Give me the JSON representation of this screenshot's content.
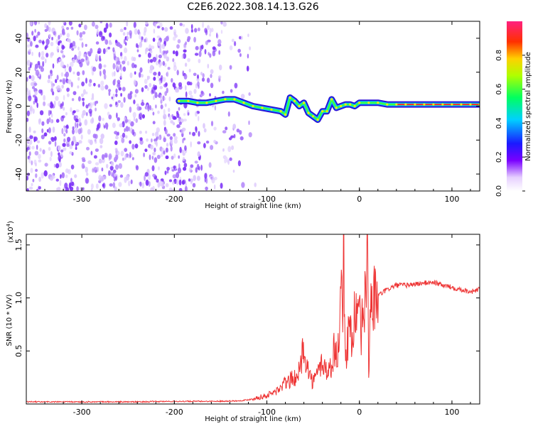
{
  "title": "C2E6.2022.308.14.13.G26",
  "colors": {
    "snr_line": "#ee3333",
    "axis": "#000000",
    "scatter_dots": "#7b2ff7",
    "background": "#ffffff"
  },
  "chart_data": [
    {
      "type": "heatmap",
      "xlabel": "Height of straight line (km)",
      "ylabel": "Frequency (Hz)",
      "xlim": [
        -360,
        130
      ],
      "ylim": [
        -50,
        50
      ],
      "x_ticks": [
        -300,
        -200,
        -100,
        0,
        100
      ],
      "y_ticks": [
        -40,
        -20,
        0,
        20,
        40
      ],
      "colorbar": {
        "label": "Normalized spectral amplitude",
        "range": [
          0.0,
          1.0
        ],
        "ticks": [
          "0.0",
          "0.2",
          "0.4",
          "0.6",
          "0.8"
        ],
        "colormap": "rainbow"
      },
      "doppler_trace": {
        "x": [
          -195,
          -185,
          -175,
          -165,
          -155,
          -145,
          -135,
          -125,
          -115,
          -105,
          -95,
          -85,
          -80,
          -75,
          -70,
          -65,
          -60,
          -55,
          -50,
          -45,
          -40,
          -35,
          -30,
          -25,
          -20,
          -15,
          -10,
          -5,
          0,
          10,
          20,
          30,
          40,
          50,
          60,
          70,
          80,
          90,
          100,
          110,
          120,
          130
        ],
        "y": [
          3,
          3,
          2,
          2,
          3,
          4,
          4,
          2,
          0,
          -1,
          -2,
          -3,
          -5,
          5,
          3,
          0,
          2,
          -4,
          -6,
          -8,
          -3,
          -3,
          4,
          -1,
          0,
          1,
          1,
          0,
          2,
          2,
          2,
          1,
          1,
          1,
          1,
          1,
          1,
          1,
          1,
          1,
          1,
          1
        ]
      }
    },
    {
      "type": "line",
      "xlabel": "Height of straight line (km)",
      "ylabel": "SNR (10 * V/V)",
      "y_scale_label": "(x10",
      "y_scale_exponent": "4",
      "y_scale_suffix": ")",
      "xlim": [
        -360,
        130
      ],
      "ylim": [
        0,
        1.6
      ],
      "x_ticks": [
        -300,
        -200,
        -100,
        0,
        100
      ],
      "y_ticks": [
        "0.5",
        "1.0",
        "1.5"
      ],
      "series": [
        {
          "x": [
            -360,
            -320,
            -280,
            -240,
            -200,
            -160,
            -130,
            -120,
            -110,
            -100,
            -95,
            -90,
            -85,
            -80,
            -75,
            -70,
            -65,
            -60,
            -55,
            -50,
            -45,
            -40,
            -35,
            -30,
            -27,
            -25,
            -22,
            -20,
            -19,
            -18,
            -17,
            -16,
            -15,
            -14,
            -12,
            -10,
            -8,
            -6,
            -4,
            -2,
            0,
            2,
            4,
            6,
            8,
            9,
            10,
            11,
            12,
            14,
            16,
            18,
            20,
            25,
            30,
            35,
            40,
            50,
            60,
            70,
            80,
            90,
            100,
            110,
            120,
            130
          ],
          "y": [
            0.02,
            0.02,
            0.02,
            0.02,
            0.025,
            0.025,
            0.03,
            0.04,
            0.06,
            0.08,
            0.1,
            0.12,
            0.15,
            0.2,
            0.22,
            0.25,
            0.3,
            0.55,
            0.3,
            0.2,
            0.3,
            0.4,
            0.3,
            0.35,
            0.55,
            0.45,
            0.6,
            0.9,
            1.2,
            1.0,
            1.6,
            0.7,
            0.4,
            0.5,
            0.65,
            0.75,
            0.6,
            0.8,
            0.9,
            0.7,
            0.85,
            0.6,
            0.9,
            0.95,
            1.3,
            1.37,
            0.3,
            0.6,
            1.0,
            0.95,
            0.98,
            1.0,
            1.02,
            1.05,
            1.08,
            1.1,
            1.12,
            1.12,
            1.13,
            1.14,
            1.15,
            1.12,
            1.1,
            1.08,
            1.06,
            1.08
          ]
        }
      ]
    }
  ]
}
